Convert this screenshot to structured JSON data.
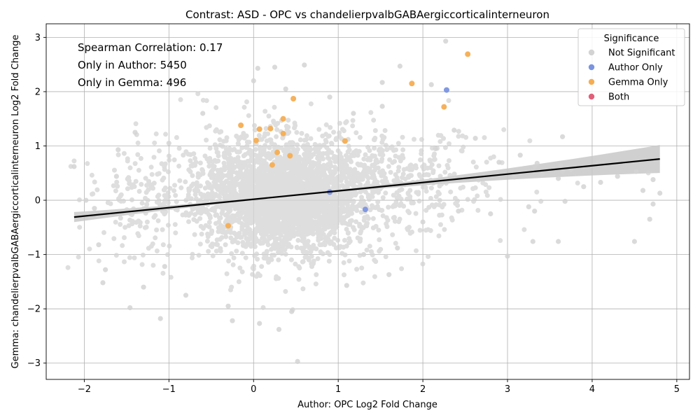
{
  "chart_data": {
    "type": "scatter",
    "title": "Contrast: ASD - OPC vs chandelierpvalbGABAergiccorticalinterneuron",
    "xlabel": "Author: OPC Log2 Fold Change",
    "ylabel": "Gemma: chandelierpvalbGABAergiccorticalinterneuron Log2 Fold Change",
    "xlim": [
      -2.45,
      5.15
    ],
    "ylim": [
      -3.3,
      3.25
    ],
    "xticks": [
      -2,
      -1,
      0,
      1,
      2,
      3,
      4,
      5
    ],
    "yticks": [
      -3,
      -2,
      -1,
      0,
      1,
      2,
      3
    ],
    "xtick_labels": [
      "−2",
      "−1",
      "0",
      "1",
      "2",
      "3",
      "4",
      "5"
    ],
    "ytick_labels": [
      "−3",
      "−2",
      "−1",
      "0",
      "1",
      "2",
      "3"
    ],
    "grid": true,
    "annotations": [
      "Spearman Correlation: 0.17",
      "Only in Author: 5450",
      "Only in Gemma: 496"
    ],
    "legend": {
      "title": "Significance",
      "placement": "top-right",
      "entries": [
        {
          "label": "Not Significant",
          "color": "#d3d3d3"
        },
        {
          "label": "Author Only",
          "color": "#7b93e0"
        },
        {
          "label": "Gemma Only",
          "color": "#f5ad52"
        },
        {
          "label": "Both",
          "color": "#e0607a"
        }
      ]
    },
    "regression": {
      "x": [
        -2.12,
        4.8
      ],
      "y": [
        -0.31,
        0.76
      ],
      "color": "#000000",
      "ci_band_color": "#c8c8c8"
    },
    "series": [
      {
        "name": "Gemma Only",
        "color": "#f5ad52",
        "points": [
          [
            2.53,
            2.69
          ],
          [
            0.47,
            1.87
          ],
          [
            1.87,
            2.15
          ],
          [
            2.25,
            1.72
          ],
          [
            -0.15,
            1.38
          ],
          [
            0.07,
            1.31
          ],
          [
            0.2,
            1.32
          ],
          [
            0.35,
            1.23
          ],
          [
            0.35,
            1.5
          ],
          [
            1.08,
            1.09
          ],
          [
            0.03,
            1.1
          ],
          [
            0.43,
            0.82
          ],
          [
            0.22,
            0.65
          ],
          [
            0.28,
            0.88
          ],
          [
            -0.3,
            -0.47
          ]
        ]
      },
      {
        "name": "Author Only",
        "color": "#7b93e0",
        "points": [
          [
            2.28,
            2.03
          ],
          [
            1.32,
            -0.17
          ],
          [
            0.9,
            0.15
          ]
        ]
      },
      {
        "name": "Not Significant (outliers)",
        "color": "#d3d3d3",
        "points": [
          [
            -2.12,
            0.62
          ],
          [
            -1.98,
            0.0
          ],
          [
            -1.88,
            -0.15
          ],
          [
            -1.83,
            -0.82
          ],
          [
            -1.78,
            -1.52
          ],
          [
            -1.75,
            -1.28
          ],
          [
            -1.6,
            0.93
          ],
          [
            -1.46,
            -1.98
          ],
          [
            -1.4,
            1.25
          ],
          [
            -1.3,
            -1.6
          ],
          [
            -1.1,
            -2.18
          ],
          [
            -1.0,
            1.05
          ],
          [
            -0.8,
            -1.75
          ],
          [
            -0.3,
            -1.95
          ],
          [
            -0.25,
            -2.22
          ],
          [
            0.05,
            2.43
          ],
          [
            0.07,
            -2.27
          ],
          [
            0.25,
            2.45
          ],
          [
            0.3,
            -2.38
          ],
          [
            0.52,
            -2.97
          ],
          [
            0.6,
            2.49
          ],
          [
            0.38,
            2.05
          ],
          [
            1.52,
            2.17
          ],
          [
            1.52,
            1.73
          ],
          [
            1.73,
            2.47
          ],
          [
            2.1,
            2.13
          ],
          [
            2.27,
            2.93
          ],
          [
            2.37,
            1.29
          ],
          [
            2.62,
            1.14
          ],
          [
            3.0,
            -1.03
          ],
          [
            3.15,
            0.83
          ],
          [
            3.25,
            -0.12
          ],
          [
            3.3,
            -0.76
          ],
          [
            3.32,
            -0.2
          ],
          [
            3.35,
            0.68
          ],
          [
            3.6,
            -0.76
          ],
          [
            3.6,
            0.4
          ],
          [
            3.65,
            1.17
          ],
          [
            3.68,
            -0.02
          ],
          [
            3.75,
            0.57
          ],
          [
            3.9,
            0.25
          ],
          [
            4.1,
            0.33
          ],
          [
            4.3,
            0.44
          ],
          [
            4.5,
            -0.76
          ],
          [
            4.52,
            0.53
          ],
          [
            4.6,
            0.18
          ],
          [
            4.68,
            -0.35
          ],
          [
            4.72,
            0.38
          ],
          [
            4.72,
            -0.07
          ],
          [
            4.8,
            0.13
          ],
          [
            1.3,
            -1.0
          ],
          [
            1.1,
            -1.57
          ],
          [
            0.45,
            -2.05
          ],
          [
            -1.05,
            -1.22
          ],
          [
            -1.5,
            -0.2
          ],
          [
            -1.62,
            0.44
          ],
          [
            2.9,
            0.7
          ],
          [
            2.8,
            -0.25
          ],
          [
            2.0,
            -0.4
          ],
          [
            1.7,
            -0.88
          ],
          [
            1.6,
            -1.37
          ],
          [
            -0.6,
            1.6
          ],
          [
            0.0,
            2.2
          ],
          [
            0.9,
            1.9
          ],
          [
            1.18,
            1.6
          ],
          [
            2.15,
            0.95
          ],
          [
            2.42,
            -0.2
          ]
        ]
      }
    ]
  }
}
